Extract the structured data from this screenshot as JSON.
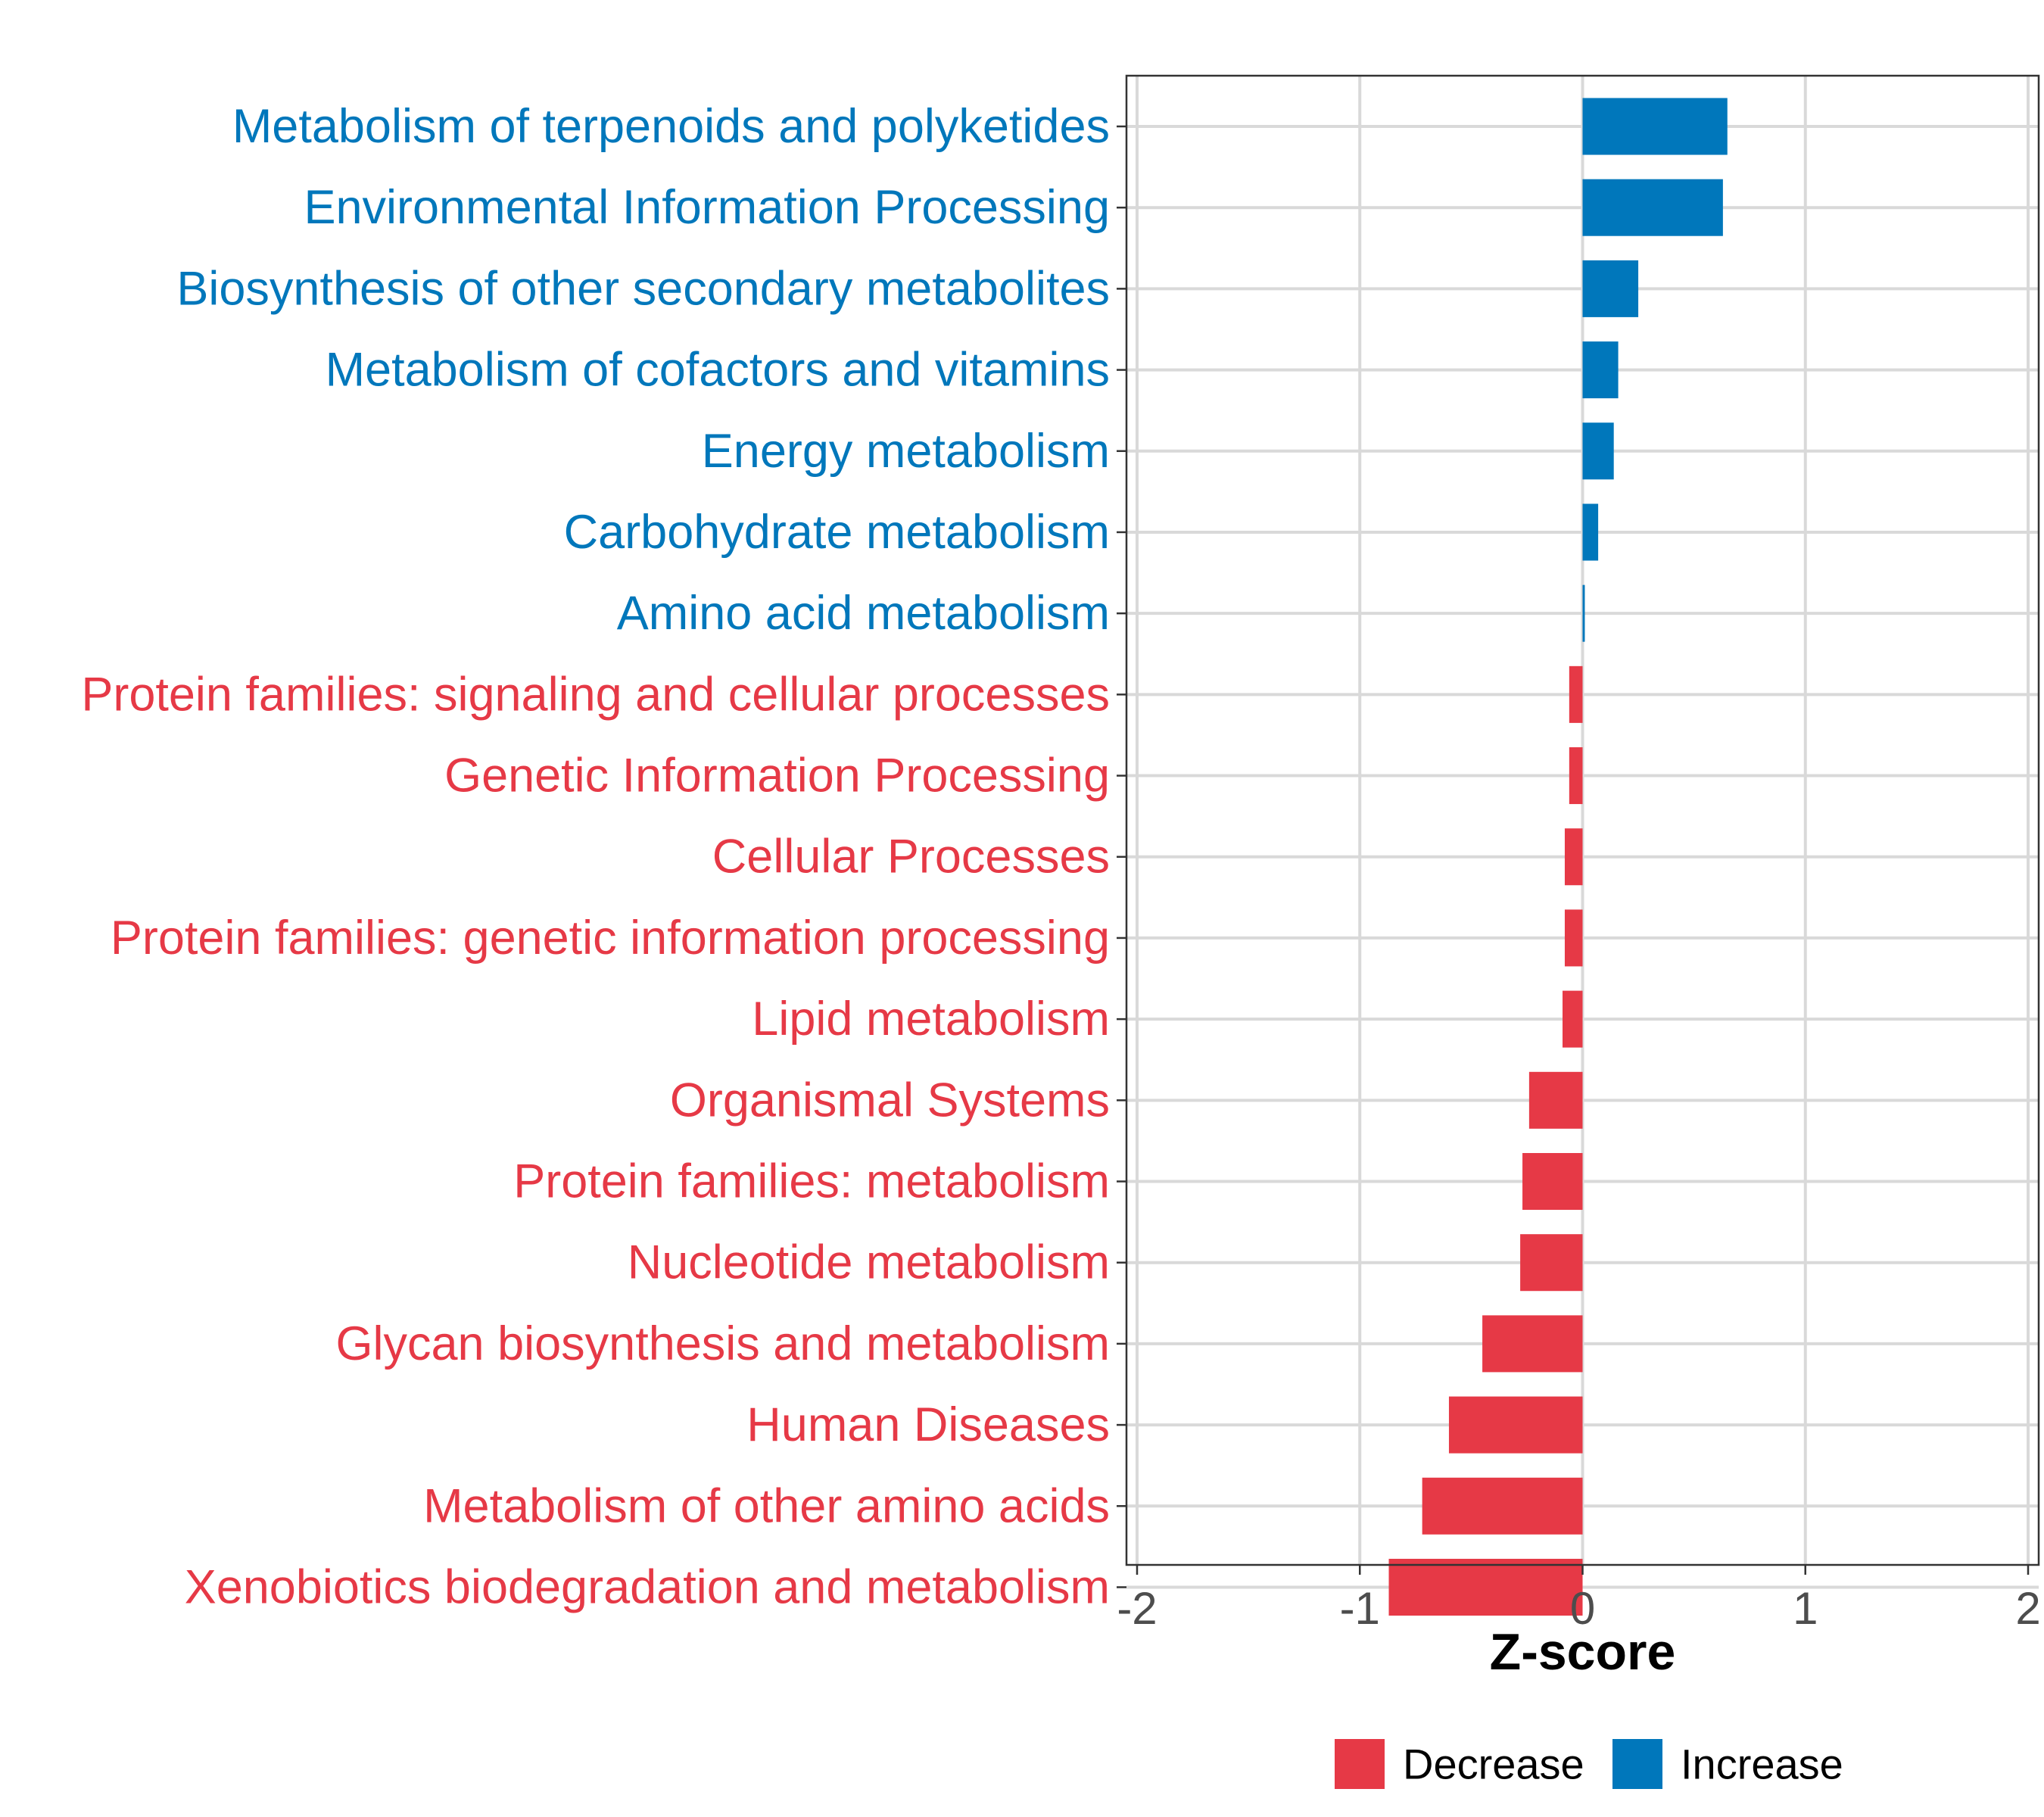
{
  "chart_data": {
    "type": "bar",
    "orientation": "horizontal",
    "title": "",
    "xlabel": "Z-score",
    "ylabel": "",
    "xlim": [
      -2,
      2
    ],
    "xticks": [
      -2,
      -1,
      0,
      1,
      2
    ],
    "xtick_labels": [
      "-2",
      "-1",
      "0",
      "1",
      "2"
    ],
    "grid": true,
    "legend_position": "bottom",
    "colors": {
      "Increase": "#0077BB",
      "Decrease": "#E63946"
    },
    "legend": [
      {
        "name": "Decrease",
        "color": "#E63946"
      },
      {
        "name": "Increase",
        "color": "#0077BB"
      }
    ],
    "categories": [
      "Metabolism of terpenoids and polyketides",
      "Environmental Information Processing",
      "Biosynthesis of other secondary metabolites",
      "Metabolism of cofactors and vitamins",
      "Energy metabolism",
      "Carbohydrate metabolism",
      "Amino acid metabolism",
      "Protein families: signaling and cellular processes",
      "Genetic Information Processing",
      "Cellular Processes",
      "Protein families: genetic information processing",
      "Lipid metabolism",
      "Organismal Systems",
      "Protein families: metabolism",
      "Nucleotide metabolism",
      "Glycan biosynthesis and metabolism",
      "Human Diseases",
      "Metabolism of other amino acids",
      "Xenobiotics biodegradation and metabolism"
    ],
    "values": [
      0.65,
      0.63,
      0.25,
      0.16,
      0.14,
      0.07,
      0.01,
      -0.06,
      -0.06,
      -0.08,
      -0.08,
      -0.09,
      -0.24,
      -0.27,
      -0.28,
      -0.45,
      -0.6,
      -0.72,
      -0.87
    ],
    "groups": [
      "Increase",
      "Increase",
      "Increase",
      "Increase",
      "Increase",
      "Increase",
      "Increase",
      "Decrease",
      "Decrease",
      "Decrease",
      "Decrease",
      "Decrease",
      "Decrease",
      "Decrease",
      "Decrease",
      "Decrease",
      "Decrease",
      "Decrease",
      "Decrease"
    ]
  }
}
